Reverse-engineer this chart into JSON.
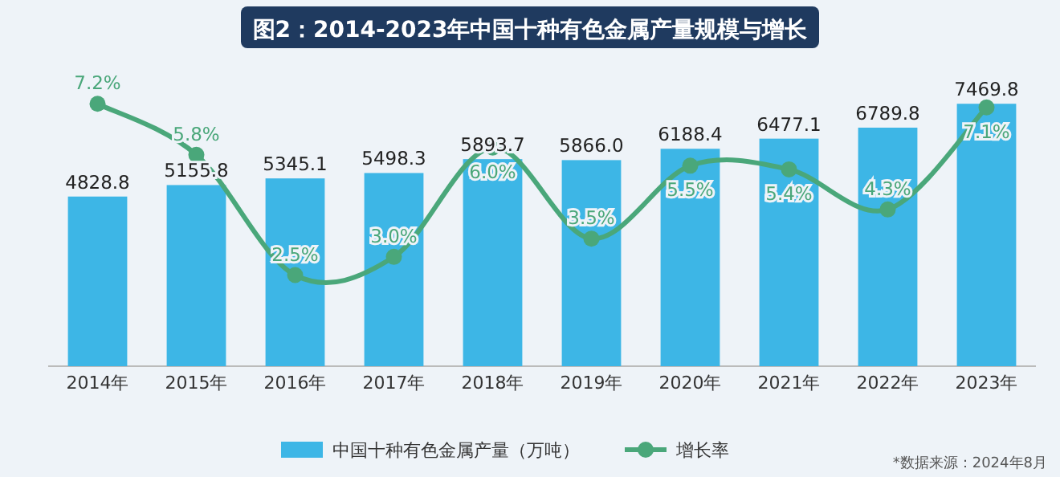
{
  "chart_data": {
    "type": "bar",
    "title": "图2：2014-2023年中国十种有色金属产量规模与增长",
    "categories": [
      "2014年",
      "2015年",
      "2016年",
      "2017年",
      "2018年",
      "2019年",
      "2020年",
      "2021年",
      "2022年",
      "2023年"
    ],
    "series": [
      {
        "name": "中国十种有色金属产量（万吨）",
        "color": "#3db6e6",
        "values": [
          4828.8,
          5155.8,
          5345.1,
          5498.3,
          5893.7,
          5866.0,
          6188.4,
          6477.1,
          6789.8,
          7469.8
        ],
        "value_labels": [
          "4828.8",
          "5155.8",
          "5345.1",
          "5498.3",
          "5893.7",
          "5866.0",
          "6188.4",
          "6477.1",
          "6789.8",
          "7469.8"
        ]
      },
      {
        "name": "增长率",
        "type": "line",
        "axis": "y2",
        "color": "#4aa77a",
        "values": [
          7.2,
          5.8,
          2.5,
          3.0,
          6.0,
          3.5,
          5.5,
          5.4,
          4.3,
          7.1
        ],
        "value_labels": [
          "7.2%",
          "5.8%",
          "2.5%",
          "3.0%",
          "6.0%",
          "3.5%",
          "5.5%",
          "5.4%",
          "4.3%",
          "7.1%"
        ]
      }
    ],
    "tick_labels": "x",
    "legend": "bottom",
    "marker": "circle",
    "line_style": "solid",
    "annotations": [
      "*数据来源：2024年8月"
    ]
  }
}
